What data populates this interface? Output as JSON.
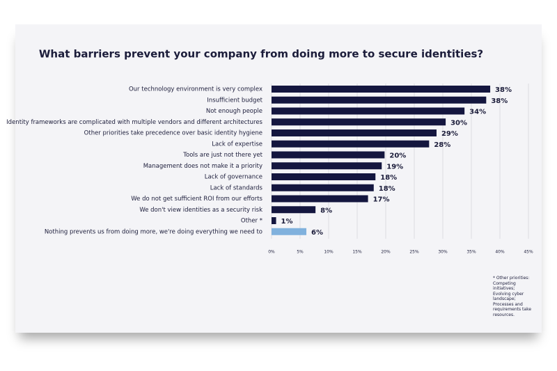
{
  "chart_data": {
    "type": "hbar",
    "title": "What barriers prevent your company from doing more to secure identities?",
    "categories": [
      "Our technology environment is very complex",
      "Insufficient budget",
      "Not enough people",
      "Identity frameworks are complicated with multiple vendors and different architectures",
      "Other priorities take precedence over basic identity hygiene",
      "Lack of expertise",
      "Tools are just not there yet",
      "Management does not make it a priority",
      "Lack of governance",
      "Lack of standards",
      "We do not get sufficient ROI from our efforts",
      "We don't view identities as a security risk",
      "Other *",
      "Nothing prevents us from doing more, we're doing everything we need to"
    ],
    "values": [
      38.3,
      37.6,
      33.8,
      30.5,
      28.9,
      27.6,
      19.8,
      19.3,
      18.2,
      17.9,
      16.9,
      7.7,
      0.8,
      6.1
    ],
    "value_labels": [
      "38%",
      "38%",
      "34%",
      "30%",
      "29%",
      "28%",
      "20%",
      "19%",
      "18%",
      "18%",
      "17%",
      "8%",
      "1%",
      "6%"
    ],
    "colors": [
      "#14163f",
      "#14163f",
      "#14163f",
      "#14163f",
      "#14163f",
      "#14163f",
      "#14163f",
      "#14163f",
      "#14163f",
      "#14163f",
      "#14163f",
      "#14163f",
      "#14163f",
      "#80b1dd"
    ],
    "xlim": [
      0,
      45
    ],
    "xticks": [
      {
        "value": 0,
        "label": "0%"
      },
      {
        "value": 5,
        "label": "5%"
      },
      {
        "value": 10,
        "label": "10%"
      },
      {
        "value": 15,
        "label": "15%"
      },
      {
        "value": 20,
        "label": "20%"
      },
      {
        "value": 25,
        "label": "25%"
      },
      {
        "value": 30,
        "label": "30%"
      },
      {
        "value": 35,
        "label": "35%"
      },
      {
        "value": 40,
        "label": "40%"
      },
      {
        "value": 45,
        "label": "45%"
      }
    ],
    "grid": true,
    "note": "* Other priorities: Competing initiatives; Evolving cyber landscape; Processes and requirements take resources."
  }
}
